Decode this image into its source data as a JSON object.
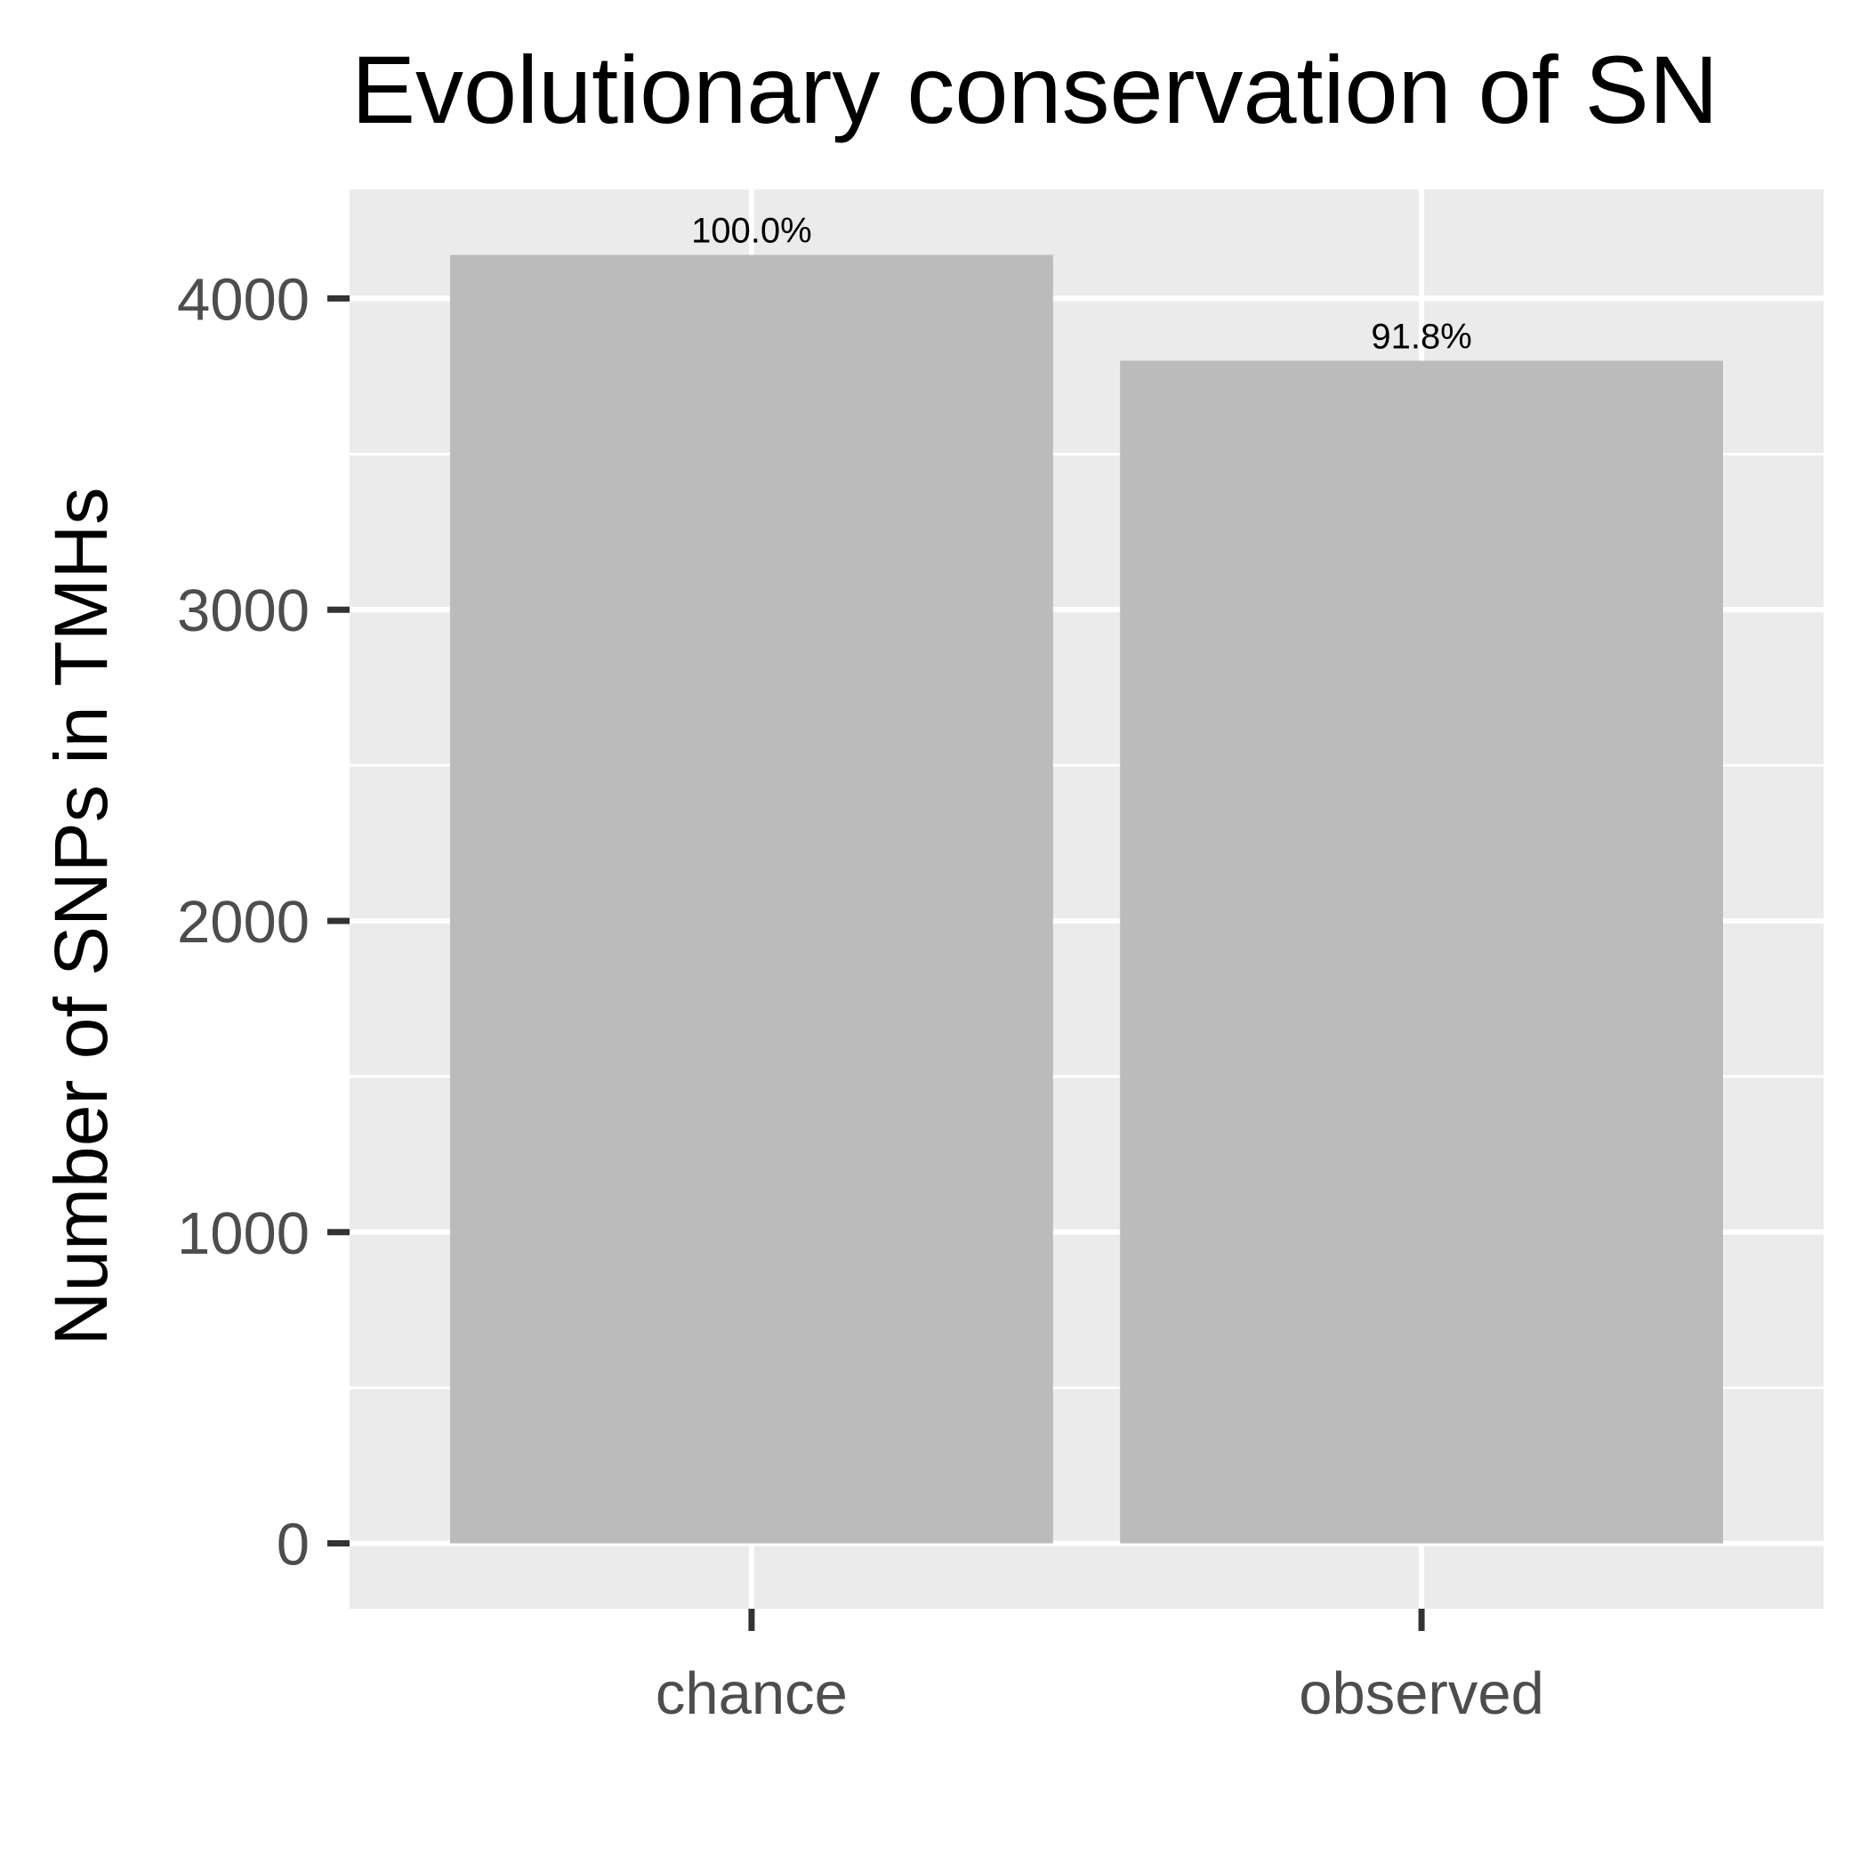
{
  "chart_data": {
    "type": "bar",
    "title": "Evolutionary conservation of SN",
    "xlabel": "",
    "ylabel": "Number of SNPs in TMHs",
    "categories": [
      "chance",
      "observed"
    ],
    "values": [
      4140,
      3800
    ],
    "bar_labels": [
      "100.0%",
      "91.8%"
    ],
    "yticks": [
      0,
      1000,
      2000,
      3000,
      4000
    ],
    "ytick_labels": [
      "0",
      "1000",
      "2000",
      "3000",
      "4000"
    ],
    "ylim": [
      -210,
      4350
    ],
    "grid": true,
    "legend": "none",
    "colors": {
      "panel": "#EBEBEB",
      "grid": "#FFFFFF",
      "bar": "#BBBBBB",
      "tick_label": "#4D4D4D",
      "tick_mark": "#333333",
      "text": "#000000"
    }
  }
}
